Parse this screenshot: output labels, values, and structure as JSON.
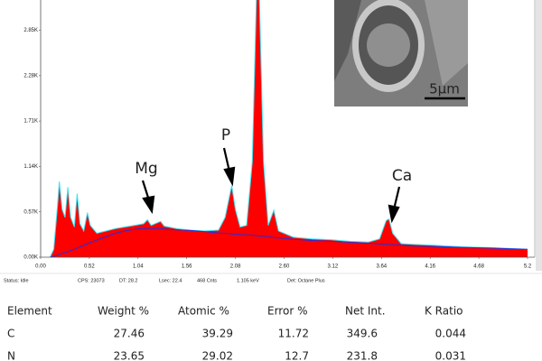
{
  "chart_data": {
    "type": "area",
    "x": [
      0.1,
      0.14,
      0.18,
      0.2,
      0.23,
      0.26,
      0.29,
      0.32,
      0.36,
      0.39,
      0.42,
      0.46,
      0.5,
      0.53,
      0.6,
      0.7,
      0.8,
      0.9,
      1.0,
      1.1,
      1.14,
      1.18,
      1.28,
      1.32,
      1.45,
      1.6,
      1.75,
      1.9,
      1.97,
      2.04,
      2.08,
      2.13,
      2.2,
      2.26,
      2.32,
      2.38,
      2.43,
      2.49,
      2.54,
      2.7,
      2.9,
      3.1,
      3.3,
      3.5,
      3.62,
      3.69,
      3.72,
      3.76,
      3.85,
      4.0,
      4.2,
      4.5,
      4.8,
      5.0,
      5.2
    ],
    "series": [
      {
        "color": "#ff0000",
        "outline": "#3fe3f2",
        "values": [
          0,
          100,
          650,
          950,
          600,
          500,
          880,
          500,
          380,
          800,
          420,
          330,
          560,
          400,
          300,
          330,
          360,
          380,
          400,
          420,
          470,
          400,
          450,
          390,
          360,
          340,
          330,
          340,
          500,
          900,
          600,
          380,
          400,
          1200,
          4000,
          1200,
          400,
          590,
          330,
          250,
          230,
          220,
          200,
          190,
          230,
          460,
          480,
          300,
          170,
          160,
          150,
          130,
          120,
          110,
          100
        ]
      },
      {
        "color": "#2b2bd6",
        "values": [
          0,
          10,
          25,
          35,
          50,
          60,
          70,
          85,
          100,
          115,
          130,
          150,
          170,
          185,
          215,
          260,
          300,
          330,
          350,
          360,
          362,
          363,
          360,
          355,
          345,
          335,
          322,
          305,
          300,
          292,
          290,
          285,
          280,
          275,
          270,
          262,
          256,
          248,
          242,
          225,
          210,
          200,
          188,
          175,
          168,
          163,
          160,
          158,
          152,
          142,
          134,
          124,
          114,
          107,
          100
        ]
      }
    ],
    "xlim": [
      0,
      5.2
    ],
    "ylim": [
      0,
      3230
    ],
    "xticks": [
      {
        "value": 0,
        "label": "0.00"
      },
      0.52,
      1.04,
      1.56,
      2.08,
      {
        "value": 2.6,
        "label": "2.60"
      },
      3.12,
      3.64,
      4.16,
      4.68,
      5.2
    ],
    "yticks": [
      {
        "value": 0,
        "label": "0.00K"
      },
      {
        "value": 570,
        "label": "0.57K"
      },
      {
        "value": 1140,
        "label": "1.14K"
      },
      {
        "value": 1710,
        "label": "1.71K"
      },
      {
        "value": 2280,
        "label": "2.28K"
      },
      {
        "value": 2850,
        "label": "2.85K"
      }
    ],
    "annotations": [
      "Mg",
      "P",
      "Ca"
    ],
    "scale_bar": "5µm"
  },
  "status": [
    "Status: Idle",
    "CPS: 23073",
    "DT: 28.2",
    "Lsec: 22.4",
    "468 Cnts",
    "1.105 keV",
    "Det: Octane Plus"
  ],
  "table": {
    "header": [
      "Element",
      "Weight %",
      "Atomic %",
      "Error %",
      "Net Int.",
      "K Ratio"
    ],
    "rows": [
      [
        "C",
        "27.46",
        "39.29",
        "11.72",
        "349.6",
        "0.044"
      ],
      [
        "N",
        "23.65",
        "29.02",
        "12.7",
        "231.8",
        "0.031"
      ]
    ]
  }
}
